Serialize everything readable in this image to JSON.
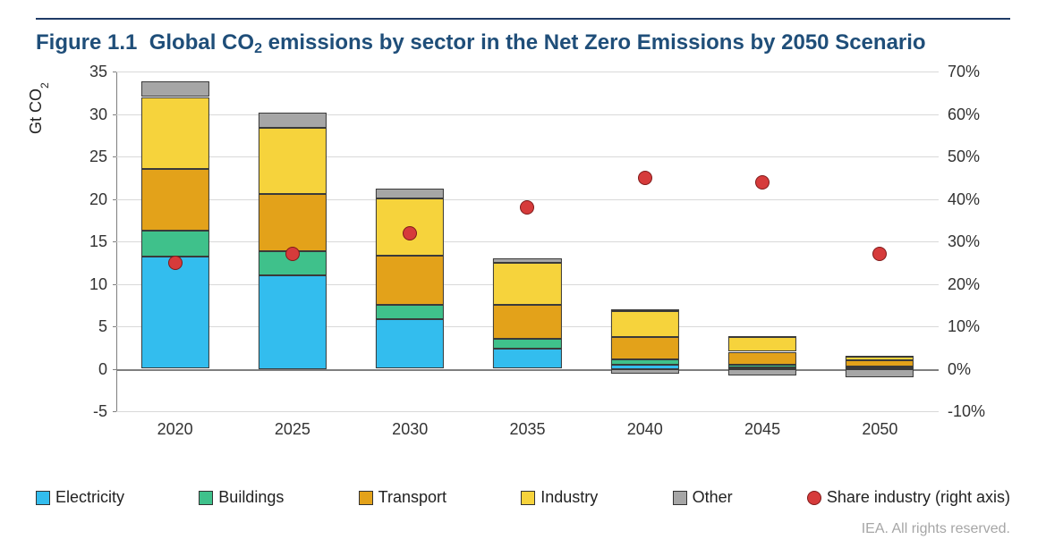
{
  "title_prefix": "Figure 1.1",
  "title_main_a": "Global CO",
  "title_main_sub": "2",
  "title_main_b": " emissions by sector in the Net Zero Emissions by 2050 Scenario",
  "credit": "IEA. All rights reserved.",
  "ylabel_a": "Gt CO",
  "ylabel_sub": "2",
  "chart": {
    "type": "stacked-bar-with-secondary-markers",
    "background_color": "#ffffff",
    "grid_color": "#d9d9d9",
    "axis_color": "#7f7f7f",
    "left_axis": {
      "min": -5,
      "max": 35,
      "step": 5,
      "ticks": [
        {
          "v": -5,
          "label": "-5"
        },
        {
          "v": 0,
          "label": "0"
        },
        {
          "v": 5,
          "label": "5"
        },
        {
          "v": 10,
          "label": "10"
        },
        {
          "v": 15,
          "label": "15"
        },
        {
          "v": 20,
          "label": "20"
        },
        {
          "v": 25,
          "label": "25"
        },
        {
          "v": 30,
          "label": "30"
        },
        {
          "v": 35,
          "label": "35"
        }
      ]
    },
    "right_axis": {
      "min": -10,
      "max": 70,
      "step": 10,
      "ticks": [
        {
          "v": -10,
          "label": "-10%"
        },
        {
          "v": 0,
          "label": "0%"
        },
        {
          "v": 10,
          "label": "10%"
        },
        {
          "v": 20,
          "label": "20%"
        },
        {
          "v": 30,
          "label": "30%"
        },
        {
          "v": 40,
          "label": "40%"
        },
        {
          "v": 50,
          "label": "50%"
        },
        {
          "v": 60,
          "label": "60%"
        },
        {
          "v": 70,
          "label": "70%"
        }
      ]
    },
    "categories": [
      "2020",
      "2025",
      "2030",
      "2035",
      "2040",
      "2045",
      "2050"
    ],
    "bar_width_pct": 58,
    "series": [
      {
        "key": "electricity",
        "label": "Electricity",
        "color": "#33bdee"
      },
      {
        "key": "buildings",
        "label": "Buildings",
        "color": "#3fc18b"
      },
      {
        "key": "transport",
        "label": "Transport",
        "color": "#e3a21a"
      },
      {
        "key": "industry",
        "label": "Industry",
        "color": "#f6d33c"
      },
      {
        "key": "other",
        "label": "Other",
        "color": "#a6a6a6"
      }
    ],
    "marker_series": {
      "key": "share_industry",
      "label": "Share industry (right axis)",
      "color": "#d63b3b",
      "border": "#7f1a1a"
    },
    "bars": [
      {
        "electricity": 13.2,
        "buildings": 3.1,
        "transport": 7.2,
        "industry": 8.5,
        "other": 1.8
      },
      {
        "electricity": 11.0,
        "buildings": 2.8,
        "transport": 6.8,
        "industry": 7.8,
        "other": 1.8
      },
      {
        "electricity": 5.8,
        "buildings": 1.7,
        "transport": 5.8,
        "industry": 6.8,
        "other": 1.1
      },
      {
        "electricity": 2.4,
        "buildings": 1.1,
        "transport": 4.0,
        "industry": 5.0,
        "other": 0.5
      },
      {
        "electricity": 0.5,
        "buildings": 0.6,
        "transport": 2.6,
        "industry": 3.1,
        "other": 0.2
      },
      {
        "electricity": 0.2,
        "buildings": 0.3,
        "transport": 1.5,
        "industry": 1.7,
        "other": 0.1
      },
      {
        "electricity": 0.1,
        "buildings": 0.15,
        "transport": 0.7,
        "industry": 0.5,
        "other": 0.05
      }
    ],
    "bars_neg_other": [
      0,
      0,
      0,
      0,
      -0.6,
      -0.8,
      -1.0
    ],
    "markers": [
      25,
      27,
      32,
      38,
      45,
      44,
      27
    ],
    "tick_label_fontsize": 18,
    "title_fontsize": 24,
    "title_color": "#1f4e79"
  },
  "legend": [
    {
      "key": "electricity",
      "type": "box"
    },
    {
      "key": "buildings",
      "type": "box"
    },
    {
      "key": "transport",
      "type": "box"
    },
    {
      "key": "industry",
      "type": "box"
    },
    {
      "key": "other",
      "type": "box"
    },
    {
      "key": "share_industry",
      "type": "dot"
    }
  ]
}
